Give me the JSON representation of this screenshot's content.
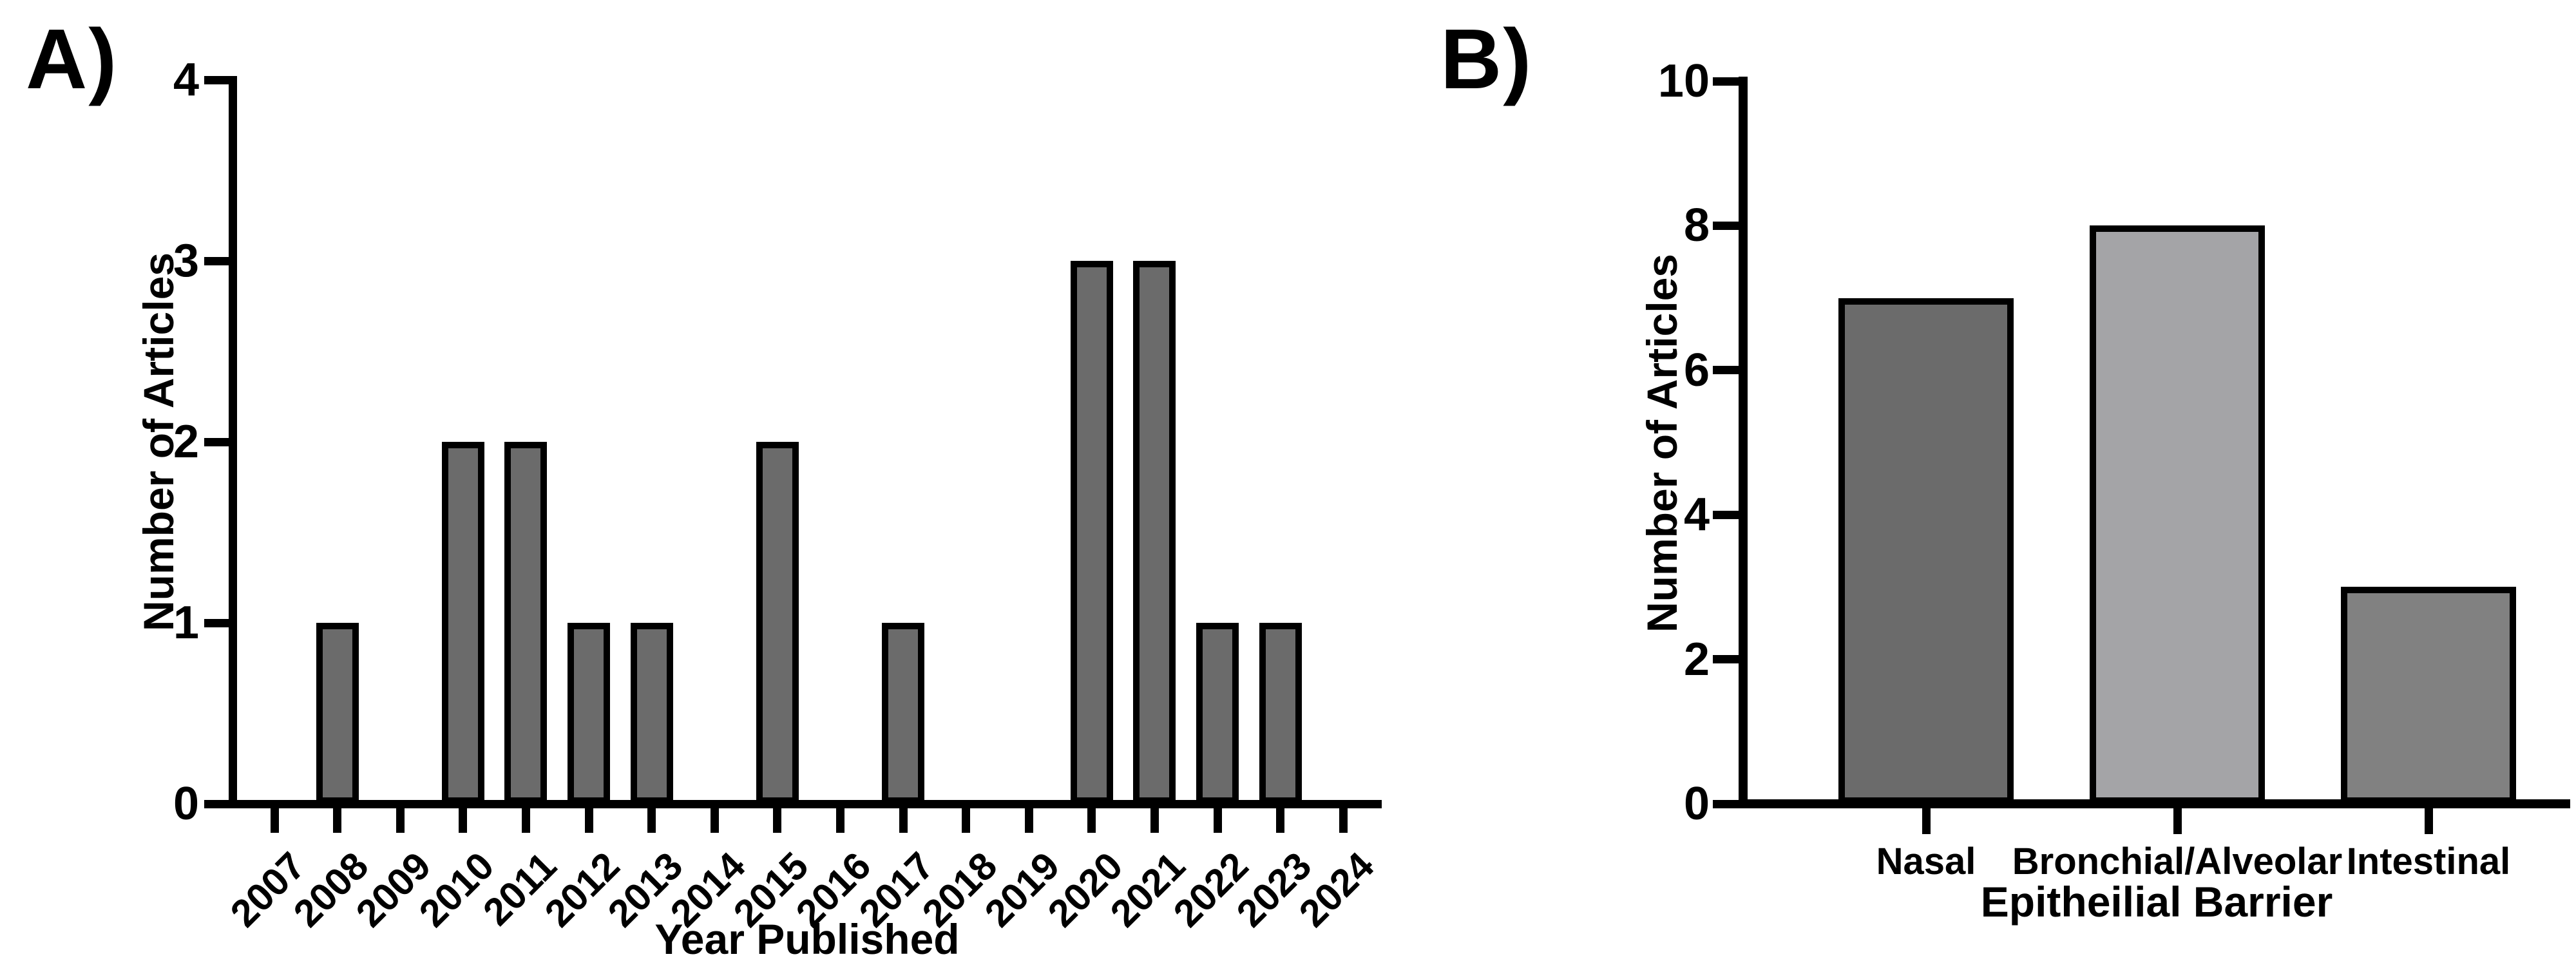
{
  "panels": [
    {
      "label": "A)"
    },
    {
      "label": "B)"
    }
  ],
  "chart_data": [
    {
      "id": "A",
      "type": "bar",
      "title": "",
      "xlabel": "Year Published",
      "ylabel": "Number of Articles",
      "categories": [
        "2007",
        "2008",
        "2009",
        "2010",
        "2011",
        "2012",
        "2013",
        "2014",
        "2015",
        "2016",
        "2017",
        "2018",
        "2019",
        "2020",
        "2021",
        "2022",
        "2023",
        "2024"
      ],
      "values": [
        0,
        1,
        0,
        2,
        2,
        1,
        1,
        0,
        2,
        0,
        1,
        0,
        0,
        3,
        3,
        1,
        1,
        0
      ],
      "ylim": [
        0,
        4
      ],
      "yticks": [
        0,
        1,
        2,
        3,
        4
      ],
      "x_tick_label_angle_deg": 45,
      "grid": false,
      "legend": null,
      "bar_fill": "#6b6b6b",
      "bar_edge": "#000000"
    },
    {
      "id": "B",
      "type": "bar",
      "title": "",
      "xlabel": "Epitheilial Barrier",
      "ylabel": "Number of Articles",
      "categories": [
        "Nasal",
        "Bronchial/Alveolar",
        "Intestinal"
      ],
      "values": [
        7,
        8,
        3
      ],
      "ylim": [
        0,
        10
      ],
      "yticks": [
        0,
        2,
        4,
        6,
        8,
        10
      ],
      "x_tick_label_angle_deg": 0,
      "grid": false,
      "legend": null,
      "bar_fills": [
        "#6b6b6b",
        "#a4a4a7",
        "#818181"
      ],
      "bar_edge": "#000000"
    }
  ]
}
